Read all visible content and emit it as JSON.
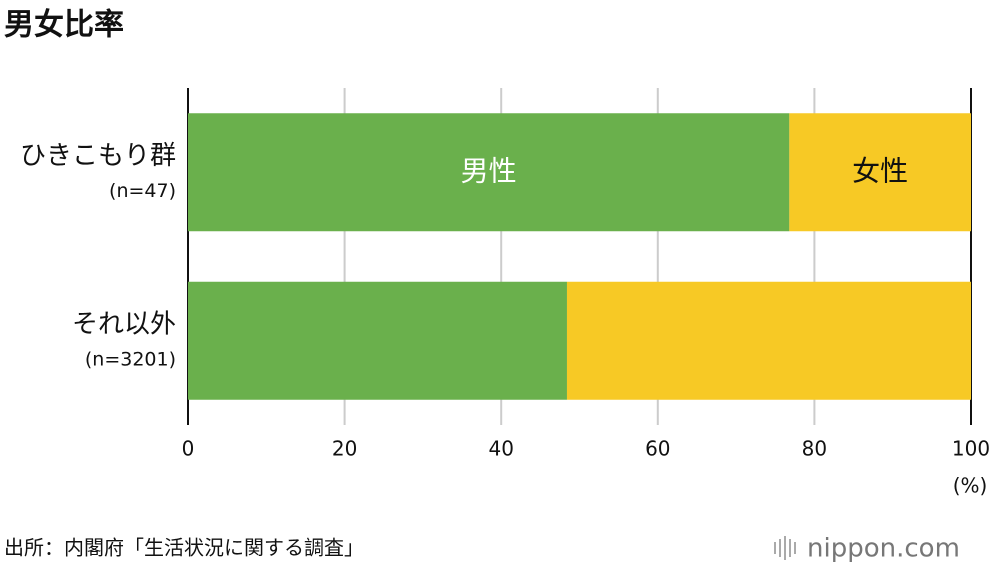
{
  "chart_data": {
    "type": "stacked-bar-horizontal",
    "title": "男女比率",
    "categories": [
      "ひきこもり群",
      "それ以外"
    ],
    "category_sublabels": [
      "(n=47)",
      "(n=3201)"
    ],
    "series": [
      {
        "name": "男性",
        "color": "#6ab04c",
        "values": [
          76.8,
          48.4
        ]
      },
      {
        "name": "女性",
        "color": "#f7c925",
        "values": [
          23.2,
          51.6
        ]
      }
    ],
    "xlim": [
      0,
      100
    ],
    "xticks": [
      0,
      20,
      40,
      60,
      80,
      100
    ],
    "x_unit": "(%)",
    "grid": true,
    "source": "出所：内閣府「生活状況に関する調査」",
    "logo": "nippon.com"
  }
}
